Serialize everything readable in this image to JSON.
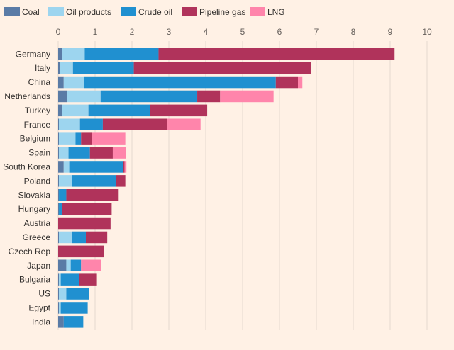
{
  "chart_data": {
    "type": "bar",
    "orientation": "horizontal",
    "stacked": true,
    "xlim": [
      0,
      10
    ],
    "xticks": [
      0,
      1,
      2,
      3,
      4,
      5,
      6,
      7,
      8,
      9,
      10
    ],
    "grid": true,
    "legend_position": "top-left",
    "categories": [
      "Germany",
      "Italy",
      "China",
      "Netherlands",
      "Turkey",
      "France",
      "Belgium",
      "Spain",
      "South Korea",
      "Poland",
      "Slovakia",
      "Hungary",
      "Austria",
      "Greece",
      "Czech Rep",
      "Japan",
      "Bulgaria",
      "US",
      "Egypt",
      "India"
    ],
    "series": [
      {
        "name": "Coal",
        "color": "#5a7ba6",
        "values": [
          0.1,
          0.05,
          0.15,
          0.25,
          0.1,
          0.02,
          0.02,
          0.02,
          0.15,
          0.02,
          0.02,
          0.02,
          0.0,
          0.02,
          0.0,
          0.22,
          0.02,
          0.02,
          0.02,
          0.15
        ]
      },
      {
        "name": "Oil products",
        "color": "#9dd5ef",
        "values": [
          0.62,
          0.35,
          0.55,
          0.9,
          0.72,
          0.57,
          0.45,
          0.26,
          0.15,
          0.35,
          0.0,
          0.0,
          0.0,
          0.35,
          0.0,
          0.12,
          0.05,
          0.2,
          0.05,
          0.0
        ]
      },
      {
        "name": "Crude oil",
        "color": "#2090d0",
        "values": [
          2.0,
          1.65,
          5.2,
          2.62,
          1.67,
          0.62,
          0.15,
          0.58,
          1.45,
          1.2,
          0.2,
          0.08,
          0.0,
          0.38,
          0.0,
          0.28,
          0.5,
          0.62,
          0.73,
          0.53
        ]
      },
      {
        "name": "Pipeline gas",
        "color": "#b0335b",
        "values": [
          6.4,
          4.8,
          0.6,
          0.62,
          1.55,
          1.75,
          0.3,
          0.62,
          0.05,
          0.25,
          1.42,
          1.35,
          1.42,
          0.58,
          1.25,
          0.0,
          0.48,
          0.0,
          0.0,
          0.0
        ]
      },
      {
        "name": "LNG",
        "color": "#ff85ab",
        "values": [
          0.0,
          0.0,
          0.12,
          1.45,
          0.0,
          0.9,
          0.9,
          0.35,
          0.05,
          0.0,
          0.0,
          0.0,
          0.0,
          0.0,
          0.0,
          0.55,
          0.0,
          0.0,
          0.0,
          0.0
        ]
      }
    ]
  }
}
